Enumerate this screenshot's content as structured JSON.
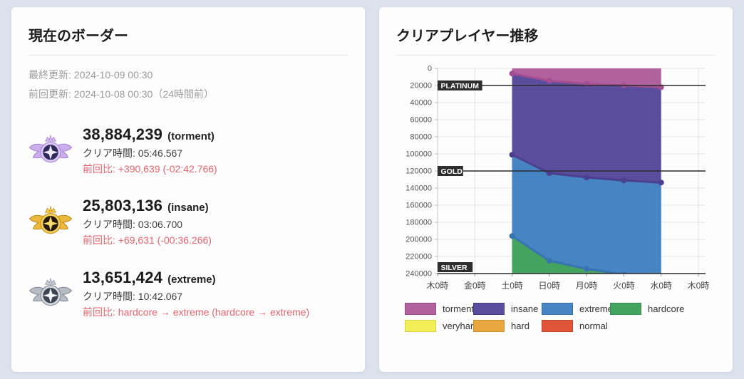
{
  "page": {
    "background": "#dbe2ec",
    "card_background": "#fdfdfe"
  },
  "left_card": {
    "title": "現在のボーダー",
    "last_update": "最終更新: 2024-10-09 00:30",
    "prev_update": "前回更新: 2024-10-08 00:30（24時間前）",
    "text_colors": {
      "update": "#9b9b9b",
      "score": "#1b1b1b",
      "clear_time": "#3c3c3c",
      "vs_previous": "#e8636c"
    },
    "borders": [
      {
        "icon": "torment-medal-icon",
        "icon_colors": {
          "wing": "#cbaeea",
          "ring": "#dcc8f4",
          "inner": "#302b5e",
          "star": "#f1eafc",
          "crown": "#cfb4ee",
          "edge": "#a886d4"
        },
        "score": "38,884,239",
        "difficulty": "(torment)",
        "clear_time": "クリア時間: 05:46.567",
        "vs_previous": "前回比: +390,639 (-02:42.766)"
      },
      {
        "icon": "insane-medal-icon",
        "icon_colors": {
          "wing": "#ecb83e",
          "ring": "#f4cf55",
          "inner": "#26190d",
          "star": "#f7dd70",
          "crown": "#f2c83c",
          "edge": "#c28f1e"
        },
        "score": "25,803,136",
        "difficulty": "(insane)",
        "clear_time": "クリア時間: 03:06.700",
        "vs_previous": "前回比: +69,631 (-00:36.266)"
      },
      {
        "icon": "extreme-medal-icon",
        "icon_colors": {
          "wing": "#b6bcc5",
          "ring": "#d3d7dd",
          "inner": "#3e4453",
          "star": "#f3f5f8",
          "crown": "#c9ced6",
          "edge": "#878e99"
        },
        "score": "13,651,424",
        "difficulty": "(extreme)",
        "clear_time": "クリア時間: 10:42.067",
        "vs_previous": "前回比: hardcore → extreme (hardcore → extreme)"
      }
    ]
  },
  "right_card": {
    "title": "クリアプレイヤー推移",
    "chart_data": {
      "type": "area",
      "stacked": true,
      "y_inverted": true,
      "title": "クリアプレイヤー推移",
      "grid": true,
      "legend_position": "bottom",
      "ylim": [
        0,
        240000
      ],
      "y_tick_step": 20000,
      "y_tick_labels": [
        "0",
        "20000",
        "40000",
        "60000",
        "80000",
        "100000",
        "120000",
        "140000",
        "160000",
        "180000",
        "200000",
        "220000",
        "240000"
      ],
      "x_ticks": [
        "木0時",
        "金0時",
        "土0時",
        "日0時",
        "月0時",
        "火0時",
        "水0時",
        "木0時"
      ],
      "data_x": [
        "土0時",
        "日0時",
        "月0時",
        "火0時",
        "水0時"
      ],
      "data_x_tick_indices": [
        2,
        3,
        4,
        5,
        6
      ],
      "series": [
        {
          "name": "torment",
          "fill": "#b2619f",
          "line": "#a54d93",
          "values": [
            6000,
            14500,
            18000,
            19800,
            22000
          ]
        },
        {
          "name": "insane",
          "fill": "#5b4d9e",
          "line": "#4c3f8e",
          "values": [
            101000,
            122500,
            127500,
            131000,
            133500
          ]
        },
        {
          "name": "extreme",
          "fill": "#4684c4",
          "line": "#3a73b1",
          "values": [
            196000,
            225000,
            234500,
            241000,
            250000
          ]
        },
        {
          "name": "hardcore",
          "fill": "#43a45f",
          "line": "#369251",
          "values": [
            null,
            null,
            null,
            null,
            null
          ],
          "note": "boundary below visible range (>240000)"
        }
      ],
      "annotations": [
        {
          "label": "PLATINUM",
          "value": 20000
        },
        {
          "label": "GOLD",
          "value": 120000
        },
        {
          "label": "SILVER",
          "value": 240000
        }
      ],
      "legend": [
        {
          "label": "torment",
          "fill": "#b2619f",
          "border": "#9c4b89"
        },
        {
          "label": "insane",
          "fill": "#5b4d9e",
          "border": "#483a8b"
        },
        {
          "label": "extreme",
          "fill": "#4684c4",
          "border": "#3670ae"
        },
        {
          "label": "hardcore",
          "fill": "#43a45f",
          "border": "#33914f"
        },
        {
          "label": "veryhard",
          "fill": "#f2ee58",
          "border": "#d9d33e"
        },
        {
          "label": "hard",
          "fill": "#e9a83f",
          "border": "#d0902b"
        },
        {
          "label": "normal",
          "fill": "#e0543a",
          "border": "#c64428"
        }
      ]
    }
  }
}
